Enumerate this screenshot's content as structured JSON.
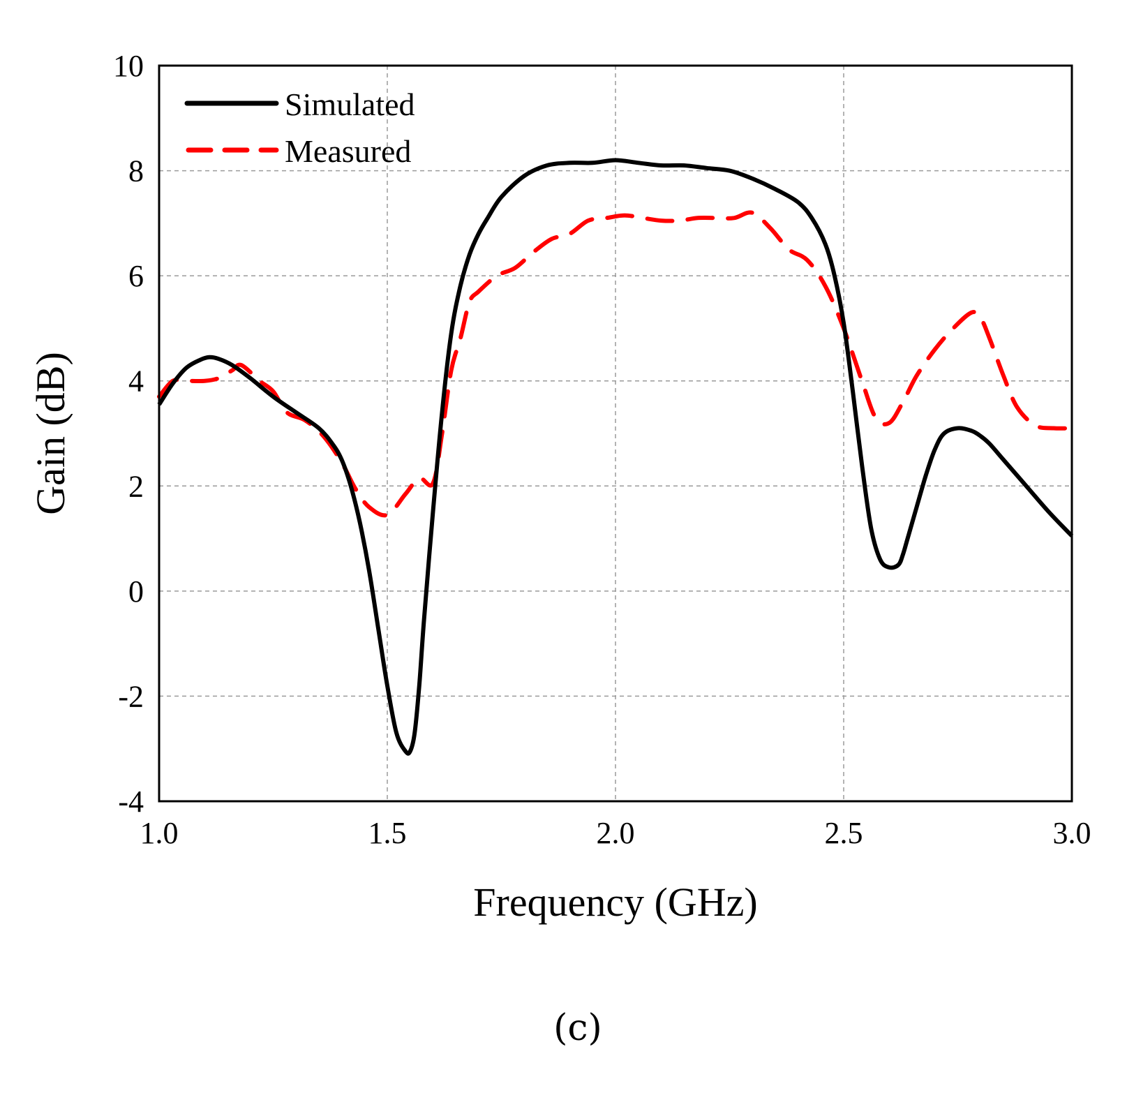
{
  "chart_data": {
    "type": "line",
    "title": "",
    "xlabel": "Frequency (GHz)",
    "ylabel": "Gain (dB)",
    "xlim": [
      1.0,
      3.0
    ],
    "ylim": [
      -4,
      10
    ],
    "xticks": [
      "1.0",
      "1.5",
      "2.0",
      "2.5",
      "3.0"
    ],
    "xtick_values": [
      1.0,
      1.5,
      2.0,
      2.5,
      3.0
    ],
    "yticks": [
      "-4",
      "-2",
      "0",
      "2",
      "4",
      "6",
      "8",
      "10"
    ],
    "ytick_values": [
      -4,
      -2,
      0,
      2,
      4,
      6,
      8,
      10
    ],
    "grid": true,
    "legend_position": "top-left",
    "caption": "(c)",
    "series": [
      {
        "name": "Simulated",
        "color": "#000000",
        "style": "solid",
        "x": [
          1.0,
          1.03,
          1.06,
          1.09,
          1.11,
          1.13,
          1.16,
          1.2,
          1.25,
          1.3,
          1.35,
          1.38,
          1.4,
          1.42,
          1.44,
          1.46,
          1.48,
          1.5,
          1.52,
          1.54,
          1.55,
          1.56,
          1.57,
          1.58,
          1.6,
          1.62,
          1.64,
          1.66,
          1.68,
          1.7,
          1.72,
          1.75,
          1.8,
          1.85,
          1.9,
          1.95,
          2.0,
          2.05,
          2.1,
          2.15,
          2.2,
          2.25,
          2.3,
          2.35,
          2.4,
          2.43,
          2.46,
          2.48,
          2.5,
          2.52,
          2.54,
          2.56,
          2.58,
          2.6,
          2.62,
          2.63,
          2.64,
          2.66,
          2.68,
          2.7,
          2.72,
          2.75,
          2.78,
          2.8,
          2.82,
          2.85,
          2.9,
          2.95,
          3.0
        ],
        "y": [
          3.55,
          3.95,
          4.25,
          4.4,
          4.45,
          4.42,
          4.3,
          4.05,
          3.7,
          3.4,
          3.1,
          2.8,
          2.5,
          2.0,
          1.3,
          0.4,
          -0.7,
          -1.8,
          -2.7,
          -3.05,
          -3.05,
          -2.7,
          -1.8,
          -0.6,
          1.5,
          3.4,
          4.9,
          5.8,
          6.4,
          6.8,
          7.1,
          7.5,
          7.9,
          8.1,
          8.15,
          8.15,
          8.2,
          8.15,
          8.1,
          8.1,
          8.05,
          8.0,
          7.85,
          7.65,
          7.4,
          7.1,
          6.6,
          6.0,
          5.1,
          3.8,
          2.4,
          1.2,
          0.6,
          0.45,
          0.5,
          0.7,
          1.0,
          1.6,
          2.2,
          2.7,
          3.0,
          3.1,
          3.05,
          2.95,
          2.8,
          2.5,
          2.0,
          1.5,
          1.05
        ]
      },
      {
        "name": "Measured",
        "color": "#ff0000",
        "style": "dashed",
        "x": [
          1.0,
          1.03,
          1.06,
          1.1,
          1.13,
          1.16,
          1.18,
          1.22,
          1.25,
          1.28,
          1.32,
          1.36,
          1.4,
          1.43,
          1.46,
          1.5,
          1.54,
          1.57,
          1.6,
          1.62,
          1.64,
          1.66,
          1.68,
          1.7,
          1.74,
          1.78,
          1.82,
          1.86,
          1.9,
          1.94,
          1.98,
          2.02,
          2.06,
          2.1,
          2.14,
          2.18,
          2.22,
          2.26,
          2.3,
          2.34,
          2.38,
          2.42,
          2.46,
          2.5,
          2.54,
          2.57,
          2.6,
          2.63,
          2.66,
          2.7,
          2.74,
          2.78,
          2.8,
          2.82,
          2.85,
          2.88,
          2.92,
          2.96,
          3.0
        ],
        "y": [
          3.7,
          4.0,
          4.0,
          4.0,
          4.05,
          4.2,
          4.3,
          4.0,
          3.8,
          3.4,
          3.25,
          2.95,
          2.45,
          1.95,
          1.6,
          1.45,
          1.85,
          2.15,
          2.05,
          3.0,
          4.2,
          4.8,
          5.5,
          5.7,
          6.0,
          6.15,
          6.45,
          6.7,
          6.8,
          7.05,
          7.1,
          7.15,
          7.1,
          7.05,
          7.05,
          7.1,
          7.1,
          7.1,
          7.2,
          6.9,
          6.5,
          6.3,
          5.8,
          5.0,
          4.0,
          3.3,
          3.2,
          3.6,
          4.1,
          4.6,
          5.0,
          5.3,
          5.2,
          4.8,
          4.1,
          3.5,
          3.15,
          3.1,
          3.1
        ]
      }
    ]
  }
}
